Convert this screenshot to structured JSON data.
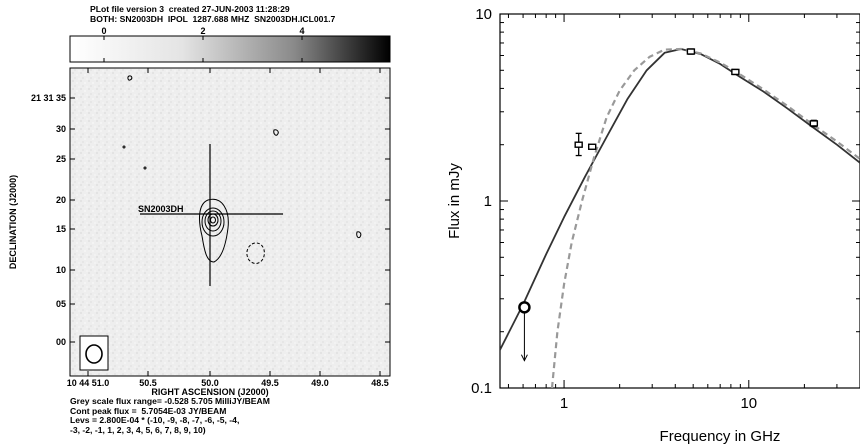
{
  "radio_map": {
    "header_line1": "PLot file version 3  created 27-JUN-2003 11:28:29",
    "header_line2": "BOTH: SN2003DH  IPOL  1287.688 MHZ  SN2003DH.ICL001.7",
    "greyscale_ticks": [
      "0",
      "2",
      "4"
    ],
    "dec_ticks": [
      "21 31 35",
      "30",
      "25",
      "20",
      "15",
      "10",
      "05",
      "00"
    ],
    "ra_ticks": [
      "10 44 51.0",
      "50.5",
      "50.0",
      "49.5",
      "49.0",
      "48.5"
    ],
    "ylabel": "DECLINATION (J2000)",
    "xlabel": "RIGHT ASCENSION (J2000)",
    "source_label": "SN2003DH",
    "footer_lines": [
      "Grey scale flux range= -0.528 5.705 MilliJY/BEAM",
      "Cont peak flux =  5.7054E-03 JY/BEAM",
      "Levs = 2.800E-04 * (-10, -9, -8, -7, -6, -5, -4,",
      "-3, -2, -1, 1, 2, 3, 4, 5, 6, 7, 8, 9, 10)"
    ]
  },
  "chart_data": {
    "type": "line",
    "title": "",
    "xlabel": "Frequency in GHz",
    "ylabel": "Flux in mJy",
    "xscale": "log",
    "yscale": "log",
    "xlim": [
      0.45,
      40
    ],
    "ylim": [
      0.1,
      10
    ],
    "x_ticks": [
      {
        "value": 1,
        "label": "1"
      },
      {
        "value": 10,
        "label": "10"
      }
    ],
    "y_ticks": [
      {
        "value": 0.1,
        "label": "0.1"
      },
      {
        "value": 1,
        "label": "1"
      },
      {
        "value": 10,
        "label": "10"
      }
    ],
    "series": [
      {
        "style": "solid",
        "color": "#333333",
        "x": [
          0.45,
          0.6,
          0.8,
          1.0,
          1.3,
          1.7,
          2.2,
          2.8,
          3.5,
          4.3,
          5.5,
          7,
          9,
          12,
          16,
          22,
          30,
          40
        ],
        "y": [
          0.16,
          0.28,
          0.52,
          0.82,
          1.35,
          2.2,
          3.5,
          5.0,
          6.2,
          6.5,
          6.1,
          5.4,
          4.6,
          3.85,
          3.15,
          2.5,
          2.0,
          1.6
        ]
      },
      {
        "style": "dashed",
        "color": "#999999",
        "x": [
          0.86,
          0.92,
          1.0,
          1.1,
          1.25,
          1.45,
          1.7,
          2.0,
          2.4,
          2.9,
          3.5,
          4.3,
          5.5,
          7,
          9,
          12,
          16,
          22,
          30,
          40
        ],
        "y": [
          0.1,
          0.2,
          0.36,
          0.6,
          1.0,
          1.7,
          2.8,
          3.9,
          5.0,
          5.9,
          6.45,
          6.5,
          6.15,
          5.5,
          4.75,
          3.95,
          3.25,
          2.58,
          2.08,
          1.68
        ]
      }
    ],
    "measurements": [
      {
        "x": 1.2,
        "y": 2.0,
        "err_lo": 1.75,
        "err_hi": 2.3
      },
      {
        "x": 1.42,
        "y": 1.95,
        "err_lo": 1.9,
        "err_hi": 2.0
      },
      {
        "x": 4.86,
        "y": 6.3,
        "err_lo": 6.1,
        "err_hi": 6.5
      },
      {
        "x": 8.46,
        "y": 4.9,
        "err_lo": 4.75,
        "err_hi": 5.05
      },
      {
        "x": 22.5,
        "y": 2.6,
        "err_lo": 2.5,
        "err_hi": 2.7
      }
    ],
    "upper_limits": [
      {
        "x": 0.61,
        "y": 0.27,
        "arrow_to": 0.14
      }
    ]
  }
}
